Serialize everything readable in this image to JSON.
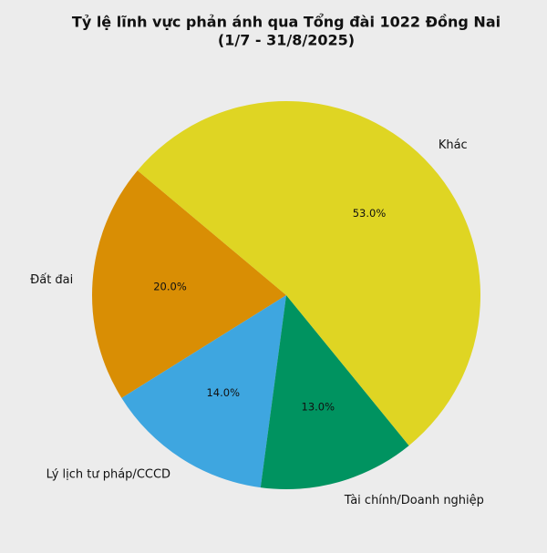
{
  "chart_data": {
    "type": "pie",
    "title": "Tỷ lệ lĩnh vực phản ánh qua Tổng đài 1022 Đồng Nai",
    "subtitle": "(1/7 - 31/8/2025)",
    "categories": [
      "Đất đai",
      "Lý lịch tư pháp/CCCD",
      "Tài chính/Doanh nghiệp",
      "Khác"
    ],
    "values": [
      20,
      14,
      13,
      53
    ],
    "value_labels": [
      "20.0%",
      "14.0%",
      "13.0%",
      "53.0%"
    ],
    "colors": [
      "#d98e04",
      "#3ea6e0",
      "#009360",
      "#dfd523"
    ]
  }
}
